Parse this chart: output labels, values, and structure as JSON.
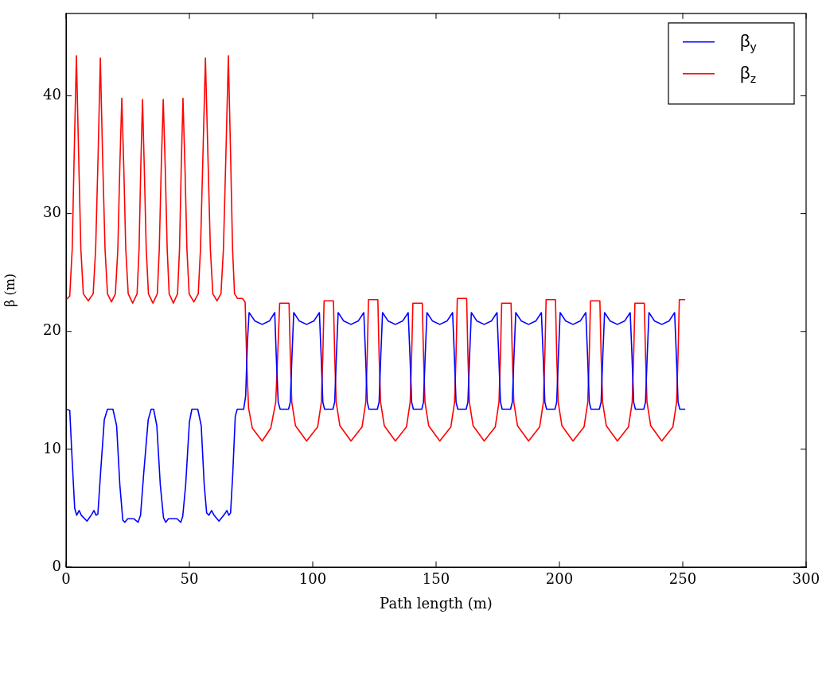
{
  "chart_data": {
    "type": "line",
    "xlabel": "Path length (m)",
    "ylabel": "β (m)",
    "xlim": [
      0,
      300
    ],
    "xticks": [
      0,
      50,
      100,
      150,
      200,
      250,
      300
    ],
    "ylim": [
      0,
      47
    ],
    "yticks": [
      0,
      10,
      20,
      30,
      40
    ],
    "grid": false,
    "legend": "top right",
    "marker": "none",
    "line_style": "solid",
    "series": [
      {
        "name": "β$_{y}$",
        "color": "#0000ff",
        "x": [
          0,
          1.5,
          2.5,
          3.5,
          4.3,
          5.3,
          6.2,
          8.5,
          10.5,
          11.3,
          12.2,
          12.9,
          14,
          15.5,
          16.8,
          19,
          20.5,
          21.8,
          23,
          23.8,
          25,
          27.5,
          29.2,
          30.2,
          31.5,
          33.3,
          34.5,
          35.5,
          36.8,
          38.2,
          39.5,
          40.4,
          41.5,
          45,
          46.5,
          47.3,
          48.5,
          50,
          51,
          53.4,
          54.8,
          56,
          57,
          57.9,
          59,
          60,
          62,
          64.3,
          65.2,
          66,
          66.7,
          67.6,
          68.6,
          69.4,
          72,
          72.8,
          73.5,
          74.2,
          76.5,
          79.5,
          82.5,
          84.6,
          85.2,
          86,
          86.8,
          90.2,
          90.9,
          91.6,
          92.3,
          94.5,
          97.5,
          100.5,
          102.7,
          103.4,
          104.1,
          104.8,
          108.2,
          108.9,
          109.6,
          110.3,
          112.5,
          115.5,
          118.5,
          120.7,
          121.4,
          122.1,
          122.8,
          126.2,
          126.9,
          127.6,
          128.3,
          130.5,
          133.5,
          136.5,
          138.7,
          139.4,
          140.1,
          140.8,
          144.2,
          144.9,
          145.6,
          146.3,
          148.5,
          151.5,
          154.5,
          156.7,
          157.4,
          158.1,
          158.8,
          162.2,
          162.9,
          163.6,
          164.3,
          166.5,
          169.5,
          172.5,
          174.7,
          175.4,
          176.1,
          176.8,
          180.2,
          180.9,
          181.6,
          182.3,
          184.5,
          187.5,
          190.5,
          192.7,
          193.4,
          194.1,
          194.8,
          198.2,
          198.9,
          199.6,
          200.3,
          202.5,
          205.5,
          208.5,
          210.7,
          211.4,
          212.1,
          212.8,
          216.2,
          216.9,
          217.6,
          218.3,
          220.5,
          223.5,
          226.5,
          228.7,
          229.4,
          230.1,
          230.8,
          234.2,
          234.9,
          235.6,
          236.3,
          238.5,
          241.5,
          244.5,
          246.7,
          247.4,
          248.1,
          248.8,
          251
        ],
        "values": [
          13.4,
          13.3,
          9,
          5,
          4.4,
          4.8,
          4.4,
          3.9,
          4.5,
          4.8,
          4.4,
          4.5,
          8,
          12.5,
          13.4,
          13.4,
          12,
          7,
          4,
          3.8,
          4.1,
          4.1,
          3.8,
          4.4,
          8,
          12.5,
          13.4,
          13.4,
          12,
          7,
          4.2,
          3.8,
          4.1,
          4.1,
          3.8,
          4.3,
          7,
          12.3,
          13.4,
          13.4,
          12,
          7,
          4.6,
          4.4,
          4.8,
          4.4,
          3.9,
          4.5,
          4.8,
          4.4,
          4.6,
          8,
          12.8,
          13.4,
          13.4,
          14.5,
          19,
          21.6,
          20.9,
          20.6,
          20.9,
          21.6,
          18,
          14,
          13.4,
          13.4,
          14,
          18,
          21.6,
          20.9,
          20.6,
          20.9,
          21.6,
          18,
          14,
          13.4,
          13.4,
          14,
          18,
          21.6,
          20.9,
          20.6,
          20.9,
          21.6,
          18,
          14,
          13.4,
          13.4,
          14,
          18,
          21.6,
          20.9,
          20.6,
          20.9,
          21.6,
          18,
          14,
          13.4,
          13.4,
          14,
          18,
          21.6,
          20.9,
          20.6,
          20.9,
          21.6,
          18,
          14,
          13.4,
          13.4,
          14,
          18,
          21.6,
          20.9,
          20.6,
          20.9,
          21.6,
          18,
          14,
          13.4,
          13.4,
          14,
          18,
          21.6,
          20.9,
          20.6,
          20.9,
          21.6,
          18,
          14,
          13.4,
          13.4,
          14,
          18,
          21.6,
          20.9,
          20.6,
          20.9,
          21.6,
          18,
          14,
          13.4,
          13.4,
          14,
          18,
          21.6,
          20.9,
          20.6,
          20.9,
          21.6,
          18,
          14,
          13.4,
          13.4,
          14,
          18,
          21.6,
          20.9,
          20.6,
          20.9,
          21.6,
          18,
          14,
          13.4,
          13.4
        ]
      },
      {
        "name": "β$_{z}$",
        "color": "#ff0000",
        "x": [
          0,
          1.5,
          2.5,
          3.3,
          4.2,
          5.1,
          6,
          7,
          9,
          11,
          12,
          13,
          13.9,
          14.8,
          15.8,
          16.8,
          18.4,
          20,
          21,
          21.8,
          22.6,
          23.4,
          24.2,
          25.2,
          27,
          28.8,
          29.6,
          30.3,
          31,
          31.7,
          32.5,
          33.4,
          35.2,
          37,
          37.8,
          38.6,
          39.4,
          40.2,
          41,
          41.8,
          43.5,
          45.2,
          46,
          46.7,
          47.4,
          48.2,
          49,
          49.9,
          51.8,
          53.6,
          54.5,
          55.5,
          56.5,
          57.5,
          58.5,
          59.5,
          61.2,
          62.8,
          63.8,
          64.8,
          65.8,
          66.7,
          67.5,
          68.3,
          69.5,
          71.5,
          72.6,
          73.3,
          74,
          75.5,
          79.5,
          83,
          85,
          85.8,
          86.6,
          90.4,
          90.9,
          91.5,
          93,
          97.5,
          102,
          103.5,
          104.1,
          104.6,
          108.4,
          108.9,
          109.5,
          111,
          115.5,
          120,
          121.5,
          122.1,
          122.6,
          126.4,
          126.9,
          127.5,
          129,
          133.5,
          138,
          139.5,
          140.1,
          140.6,
          144.4,
          144.9,
          145.5,
          147,
          151.5,
          156,
          157.5,
          158.1,
          158.6,
          162.4,
          162.9,
          163.5,
          165,
          169.5,
          174,
          175.5,
          176.1,
          176.6,
          180.4,
          180.9,
          181.5,
          183,
          187.5,
          192,
          193.5,
          194.1,
          194.6,
          198.4,
          198.9,
          199.5,
          201,
          205.5,
          210,
          211.5,
          212.1,
          212.6,
          216.4,
          216.9,
          217.5,
          219,
          223.5,
          228,
          229.5,
          230.1,
          230.6,
          234.4,
          234.9,
          235.5,
          237,
          241.5,
          246,
          247.5,
          248.1,
          248.6,
          251
        ],
        "values": [
          22.7,
          23,
          27,
          35,
          43.4,
          35,
          27,
          23.2,
          22.6,
          23.2,
          27,
          35,
          43.2,
          35,
          27,
          23.2,
          22.5,
          23.2,
          27,
          34,
          39.8,
          34,
          27,
          23.2,
          22.4,
          23.2,
          27,
          34,
          39.7,
          34,
          27,
          23.2,
          22.4,
          23.2,
          27,
          34,
          39.7,
          34,
          27,
          23.2,
          22.4,
          23.2,
          27,
          34,
          39.8,
          34,
          27,
          23.2,
          22.5,
          23.2,
          27,
          35,
          43.2,
          35,
          27,
          23.2,
          22.6,
          23.2,
          27,
          35,
          43.4,
          35,
          27,
          23.2,
          22.8,
          22.8,
          22.5,
          17,
          13.5,
          11.8,
          10.7,
          11.8,
          14,
          18,
          22.4,
          22.4,
          18,
          14,
          12,
          10.7,
          11.9,
          14,
          18,
          22.6,
          22.6,
          18,
          14,
          12,
          10.7,
          11.9,
          14,
          18,
          22.7,
          22.7,
          18,
          14,
          12,
          10.7,
          11.9,
          14,
          18,
          22.4,
          22.4,
          18,
          14,
          12,
          10.7,
          11.9,
          14,
          18,
          22.8,
          22.8,
          18,
          14,
          12,
          10.7,
          11.9,
          14,
          18,
          22.4,
          22.4,
          18,
          14,
          12,
          10.7,
          11.9,
          14,
          18,
          22.7,
          22.7,
          18,
          14,
          12,
          10.7,
          11.9,
          14,
          18,
          22.6,
          22.6,
          18,
          14,
          12,
          10.7,
          11.9,
          14,
          18,
          22.4,
          22.4,
          18,
          14,
          12,
          10.7,
          11.9,
          14,
          18,
          22.7,
          22.7
        ]
      }
    ]
  }
}
